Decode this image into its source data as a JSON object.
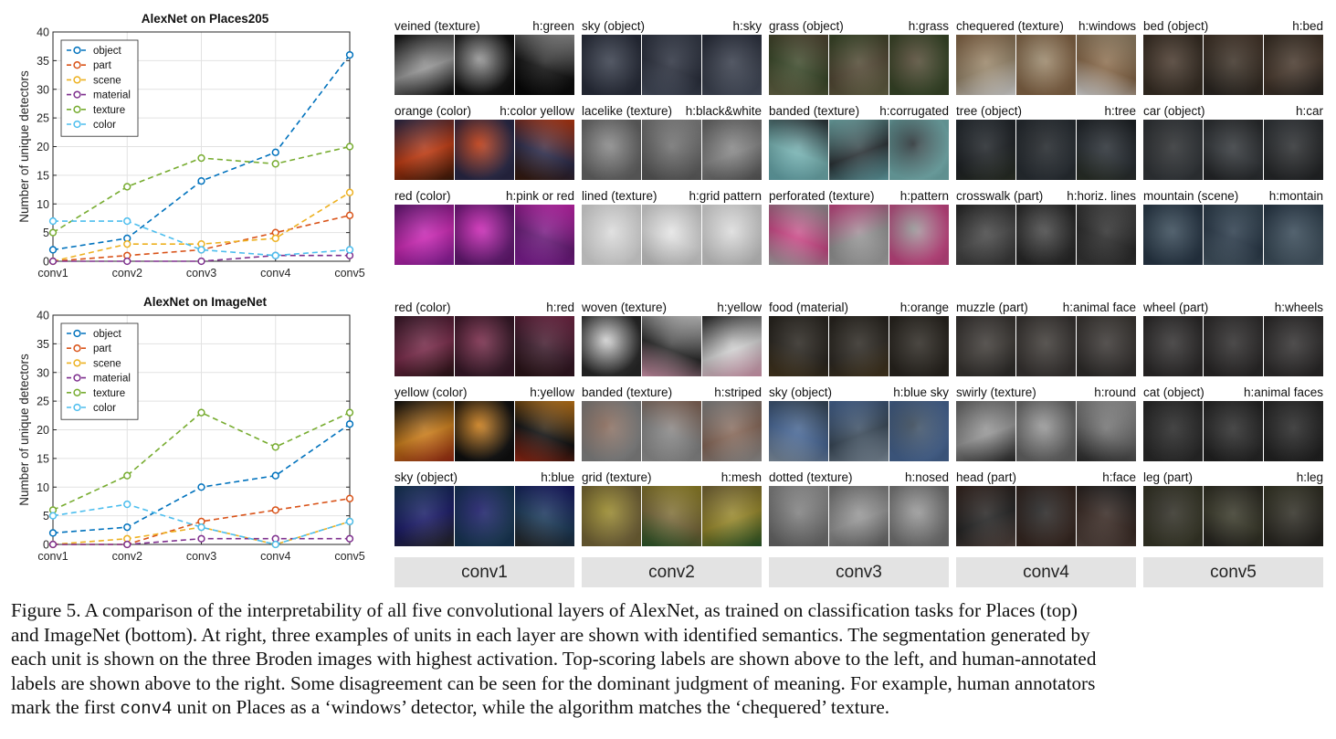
{
  "chart_data": [
    {
      "type": "line",
      "title": "AlexNet on Places205",
      "xlabel": "",
      "ylabel": "Number of unique detectors",
      "categories": [
        "conv1",
        "conv2",
        "conv3",
        "conv4",
        "conv5"
      ],
      "ylim": [
        0,
        40
      ],
      "yticks": [
        0,
        5,
        10,
        15,
        20,
        25,
        30,
        35,
        40
      ],
      "grid": true,
      "legend": "top-left",
      "line_style": "dashed",
      "series": [
        {
          "name": "object",
          "color": "#0072bd",
          "values": [
            2,
            4,
            14,
            19,
            36
          ]
        },
        {
          "name": "part",
          "color": "#d95319",
          "values": [
            0,
            1,
            2,
            5,
            8
          ]
        },
        {
          "name": "scene",
          "color": "#edb120",
          "values": [
            0,
            3,
            3,
            4,
            12
          ]
        },
        {
          "name": "material",
          "color": "#7e2f8e",
          "values": [
            0,
            0,
            0,
            1,
            1
          ]
        },
        {
          "name": "texture",
          "color": "#77ac30",
          "values": [
            5,
            13,
            18,
            17,
            20
          ]
        },
        {
          "name": "color",
          "color": "#4dbeee",
          "values": [
            7,
            7,
            2,
            1,
            2
          ]
        }
      ]
    },
    {
      "type": "line",
      "title": "AlexNet on ImageNet",
      "xlabel": "",
      "ylabel": "Number of unique detectors",
      "categories": [
        "conv1",
        "conv2",
        "conv3",
        "conv4",
        "conv5"
      ],
      "ylim": [
        0,
        40
      ],
      "yticks": [
        0,
        5,
        10,
        15,
        20,
        25,
        30,
        35,
        40
      ],
      "grid": true,
      "legend": "top-left",
      "line_style": "dashed",
      "series": [
        {
          "name": "object",
          "color": "#0072bd",
          "values": [
            2,
            3,
            10,
            12,
            21
          ]
        },
        {
          "name": "part",
          "color": "#d95319",
          "values": [
            0,
            0,
            4,
            6,
            8
          ]
        },
        {
          "name": "scene",
          "color": "#edb120",
          "values": [
            0,
            1,
            3,
            0,
            4
          ]
        },
        {
          "name": "material",
          "color": "#7e2f8e",
          "values": [
            0,
            0,
            1,
            1,
            1
          ]
        },
        {
          "name": "texture",
          "color": "#77ac30",
          "values": [
            6,
            12,
            23,
            17,
            23
          ]
        },
        {
          "name": "color",
          "color": "#4dbeee",
          "values": [
            5,
            7,
            3,
            0,
            4
          ]
        }
      ]
    }
  ],
  "layers": [
    "conv1",
    "conv2",
    "conv3",
    "conv4",
    "conv5"
  ],
  "tiles": {
    "places": [
      [
        {
          "label": "veined (texture)",
          "human": "h:green",
          "palette": [
            "#101010",
            "#9a9a9a",
            "#050505"
          ]
        },
        {
          "label": "sky (object)",
          "human": "h:sky",
          "palette": [
            "#2a2f3d",
            "#3a404e",
            "#4d5566"
          ]
        },
        {
          "label": "grass (object)",
          "human": "h:grass",
          "palette": [
            "#3b4a2a",
            "#554a36",
            "#6b6a4a"
          ]
        },
        {
          "label": "chequered (texture)",
          "human": "h:windows",
          "palette": [
            "#8a6a4a",
            "#9c8a6e",
            "#e8e8e8"
          ]
        },
        {
          "label": "bed (object)",
          "human": "h:bed",
          "palette": [
            "#3a3026",
            "#4a3a2e",
            "#2a2622"
          ]
        }
      ],
      [
        {
          "label": "orange (color)",
          "human": "h:color yellow",
          "palette": [
            "#2b2a4a",
            "#c23a10",
            "#3a1a0a"
          ]
        },
        {
          "label": "lacelike (texture)",
          "human": "h:black&white",
          "palette": [
            "#6a6a6a",
            "#8a8a8a",
            "#5a5a5a"
          ]
        },
        {
          "label": "banded (texture)",
          "human": "h:corrugated",
          "palette": [
            "#7ab8b8",
            "#2a3236",
            "#6aaeb4"
          ]
        },
        {
          "label": "tree (object)",
          "human": "h:tree",
          "palette": [
            "#2a3036",
            "#1e2226",
            "#2c3228"
          ]
        },
        {
          "label": "car (object)",
          "human": "h:car",
          "palette": [
            "#34383c",
            "#2a2c2e",
            "#242628"
          ]
        }
      ],
      [
        {
          "label": "red (color)",
          "human": "h:pink or red",
          "palette": [
            "#6a1a7a",
            "#d028b8",
            "#8a20a0"
          ]
        },
        {
          "label": "lined (texture)",
          "human": "h:grid pattern",
          "palette": [
            "#e6e6e6",
            "#dadada",
            "#cfcfcf"
          ]
        },
        {
          "label": "perforated (texture)",
          "human": "h:pattern",
          "palette": [
            "#d04a8a",
            "#9a9a9a",
            "#b0b0b0"
          ]
        },
        {
          "label": "crosswalk (part)",
          "human": "h:horiz. lines",
          "palette": [
            "#2a2a2a",
            "#4a4a4a",
            "#3a3a3a"
          ]
        },
        {
          "label": "mountain (scene)",
          "human": "h:montain",
          "palette": [
            "#2a3a4a",
            "#3a4c5a",
            "#4a5c6a"
          ]
        }
      ]
    ],
    "imagenet": [
      [
        {
          "label": "red (color)",
          "human": "h:red",
          "palette": [
            "#3a1a2a",
            "#7a2a4a",
            "#2a1416"
          ]
        },
        {
          "label": "woven (texture)",
          "human": "h:yellow",
          "palette": [
            "#2a2a2a",
            "#d8d8d8",
            "#e0a0b8"
          ]
        },
        {
          "label": "food (material)",
          "human": "h:orange",
          "palette": [
            "#2a2620",
            "#2e2a24",
            "#4a3a20"
          ]
        },
        {
          "label": "muzzle (part)",
          "human": "h:animal face",
          "palette": [
            "#3a3634",
            "#403c38",
            "#2e2c2a"
          ]
        },
        {
          "label": "wheel (part)",
          "human": "h:wheels",
          "palette": [
            "#2e2c2c",
            "#343232",
            "#2a2828"
          ]
        }
      ],
      [
        {
          "label": "yellow (color)",
          "human": "h:yellow",
          "palette": [
            "#101010",
            "#d0801a",
            "#a02a14"
          ]
        },
        {
          "label": "banded (texture)",
          "human": "h:striped",
          "palette": [
            "#8a8a8a",
            "#8a6a5a",
            "#9a9a9a"
          ]
        },
        {
          "label": "sky (object)",
          "human": "h:blue sky",
          "palette": [
            "#4a6a9a",
            "#3a4a5a",
            "#8a9aaa"
          ]
        },
        {
          "label": "swirly (texture)",
          "human": "h:round",
          "palette": [
            "#6a6a6a",
            "#9a9a9a",
            "#2c2c2c"
          ]
        },
        {
          "label": "cat (object)",
          "human": "h:animal faces",
          "palette": [
            "#2c2c2c",
            "#262626",
            "#222222"
          ]
        }
      ],
      [
        {
          "label": "sky (object)",
          "human": "h:blue",
          "palette": [
            "#1a3a5a",
            "#1a1a6a",
            "#2a2a2a"
          ]
        },
        {
          "label": "grid (texture)",
          "human": "h:mesh",
          "palette": [
            "#7a6a3a",
            "#9a8a2a",
            "#2a5a2a"
          ]
        },
        {
          "label": "dotted (texture)",
          "human": "h:nosed",
          "palette": [
            "#7a7a7a",
            "#9a9a9a",
            "#6a6a6a"
          ]
        },
        {
          "label": "head (part)",
          "human": "h:face",
          "palette": [
            "#3a2a24",
            "#242424",
            "#5a4a44"
          ]
        },
        {
          "label": "leg (part)",
          "human": "h:leg",
          "palette": [
            "#3a3a2a",
            "#2e2c24",
            "#262420"
          ]
        }
      ]
    ]
  },
  "caption": {
    "line1": "Figure 5. A comparison of the interpretability of all five convolutional layers of AlexNet, as trained on classification tasks for Places (top)",
    "line2": "and ImageNet (bottom). At right, three examples of units in each layer are shown with identified semantics. The segmentation generated by",
    "line3": "each unit is shown on the three Broden images with highest activation. Top-scoring labels are shown above to the left, and human-annotated",
    "line4": "labels are shown above to the right. Some disagreement can be seen for the dominant judgment of meaning. For example, human annotators",
    "line5a": "mark the first ",
    "line5code": "conv4",
    "line5b": " unit on Places as a ‘windows’ detector, while the algorithm matches the ‘chequered’ texture."
  }
}
